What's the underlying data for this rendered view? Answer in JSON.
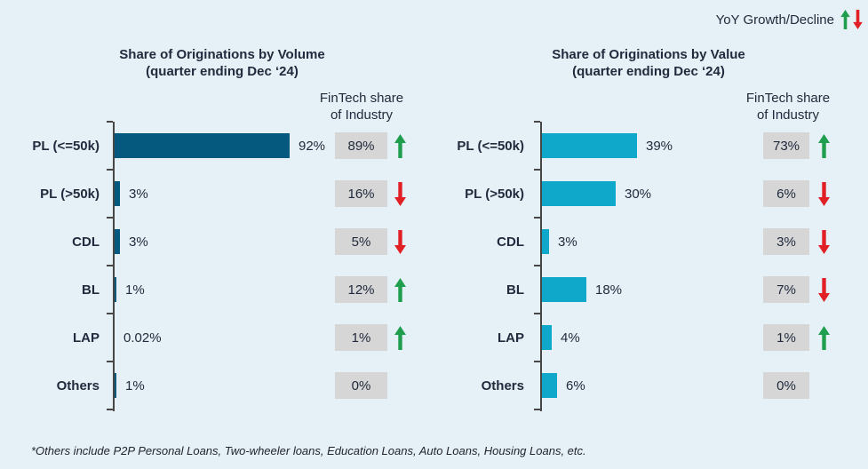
{
  "page": {
    "background_color": "#e5f0f7",
    "yoy_legend": {
      "label": "YoY Growth/Decline"
    },
    "footnote": "*Others include P2P Personal Loans, Two-wheeler loans, Education Loans, Auto Loans, Housing Loans, etc."
  },
  "colors": {
    "volume_bar": "#05587e",
    "value_bar": "#0fa8cb",
    "industry_box_bg": "#d6d6d6",
    "growth_green": "#1f9e4e",
    "decline_red": "#e12026",
    "text_navy": "#212b3d",
    "axis_gray": "#474747"
  },
  "chart_data": [
    {
      "type": "bar",
      "orientation": "horizontal",
      "title": "Share of Originations by Volume",
      "subtitle": "(quarter ending Dec ‘24)",
      "column_header_line1": "FinTech share",
      "column_header_line2": "of Industry",
      "categories": [
        "PL (<=50k)",
        "PL (>50k)",
        "CDL",
        "BL",
        "LAP",
        "Others"
      ],
      "values": [
        92,
        3,
        3,
        1,
        0.02,
        1
      ],
      "value_labels": [
        "92%",
        "3%",
        "3%",
        "1%",
        "0.02%",
        "1%"
      ],
      "fintech_share_labels": [
        "89%",
        "16%",
        "5%",
        "12%",
        "1%",
        "0%"
      ],
      "yoy_direction": [
        "up",
        "down",
        "down",
        "up",
        "up",
        "none"
      ],
      "bar_color": "#05587e",
      "xlim": [
        0,
        100
      ],
      "grid": false,
      "legend_position": "none"
    },
    {
      "type": "bar",
      "orientation": "horizontal",
      "title": "Share of Originations by Value",
      "subtitle": "(quarter ending Dec ‘24)",
      "column_header_line1": "FinTech share",
      "column_header_line2": "of Industry",
      "categories": [
        "PL (<=50k)",
        "PL (>50k)",
        "CDL",
        "BL",
        "LAP",
        "Others"
      ],
      "values": [
        39,
        30,
        3,
        18,
        4,
        6
      ],
      "value_labels": [
        "39%",
        "30%",
        "3%",
        "18%",
        "4%",
        "6%"
      ],
      "fintech_share_labels": [
        "73%",
        "6%",
        "3%",
        "7%",
        "1%",
        "0%"
      ],
      "yoy_direction": [
        "up",
        "down",
        "down",
        "down",
        "up",
        "none"
      ],
      "bar_color": "#0fa8cb",
      "xlim": [
        0,
        100
      ],
      "grid": false,
      "legend_position": "none"
    }
  ]
}
